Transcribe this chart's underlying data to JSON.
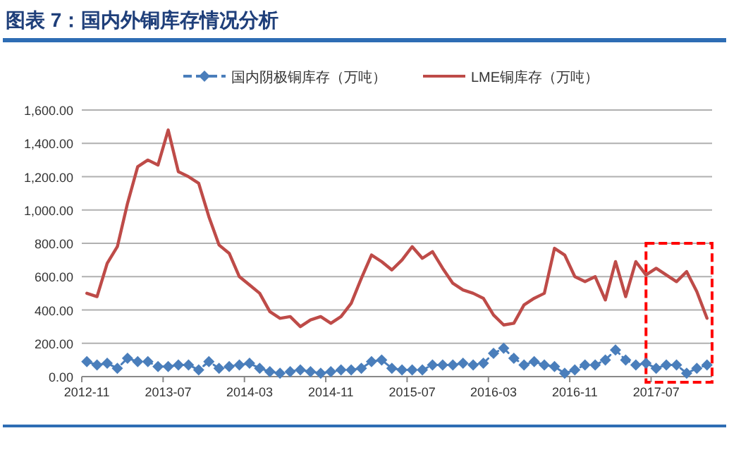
{
  "chart_data": {
    "type": "line",
    "title": "图表 7：国内外铜库存情况分析",
    "categories": [
      "2012-11",
      null,
      null,
      null,
      null,
      null,
      null,
      null,
      "2013-07",
      null,
      null,
      null,
      null,
      null,
      null,
      null,
      "2014-03",
      null,
      null,
      null,
      null,
      null,
      null,
      null,
      "2014-11",
      null,
      null,
      null,
      null,
      null,
      null,
      null,
      "2015-07",
      null,
      null,
      null,
      null,
      null,
      null,
      null,
      "2016-03",
      null,
      null,
      null,
      null,
      null,
      null,
      null,
      "2016-11",
      null,
      null,
      null,
      null,
      null,
      null,
      null,
      "2017-07",
      null,
      null,
      null,
      null,
      null
    ],
    "series": [
      {
        "name": "国内阴极铜库存（万吨）",
        "color": "#4a7ebb",
        "marker": "diamond",
        "line_style": "dashed",
        "values": [
          90,
          70,
          80,
          50,
          110,
          90,
          90,
          60,
          60,
          70,
          70,
          40,
          90,
          50,
          60,
          70,
          80,
          50,
          30,
          20,
          30,
          40,
          30,
          20,
          30,
          40,
          40,
          50,
          90,
          100,
          50,
          40,
          40,
          40,
          70,
          70,
          70,
          80,
          70,
          80,
          140,
          170,
          110,
          70,
          90,
          70,
          60,
          20,
          40,
          70,
          70,
          100,
          160,
          100,
          70,
          80,
          50,
          70,
          70,
          20,
          50,
          70
        ]
      },
      {
        "name": "LME铜库存（万吨）",
        "color": "#be4b48",
        "marker": "none",
        "line_style": "solid",
        "values": [
          500,
          480,
          680,
          780,
          1040,
          1260,
          1300,
          1270,
          1480,
          1230,
          1200,
          1160,
          960,
          790,
          740,
          600,
          550,
          500,
          390,
          350,
          360,
          300,
          340,
          360,
          320,
          360,
          440,
          590,
          730,
          690,
          640,
          700,
          780,
          710,
          750,
          650,
          560,
          520,
          500,
          470,
          370,
          310,
          320,
          430,
          470,
          500,
          770,
          730,
          600,
          570,
          600,
          460,
          690,
          480,
          690,
          610,
          650,
          610,
          570,
          630,
          510,
          350
        ]
      }
    ],
    "ylim": [
      0,
      1600
    ],
    "yticks": [
      {
        "value": 0,
        "label": "0.00"
      },
      {
        "value": 200,
        "label": "200.00"
      },
      {
        "value": 400,
        "label": "400.00"
      },
      {
        "value": 600,
        "label": "600.00"
      },
      {
        "value": 800,
        "label": "800.00"
      },
      {
        "value": 1000,
        "label": "1,000.00"
      },
      {
        "value": 1200,
        "label": "1,200.00"
      },
      {
        "value": 1400,
        "label": "1,400.00"
      },
      {
        "value": 1600,
        "label": "1,600.00"
      }
    ],
    "grid": "y",
    "legend": "top"
  }
}
